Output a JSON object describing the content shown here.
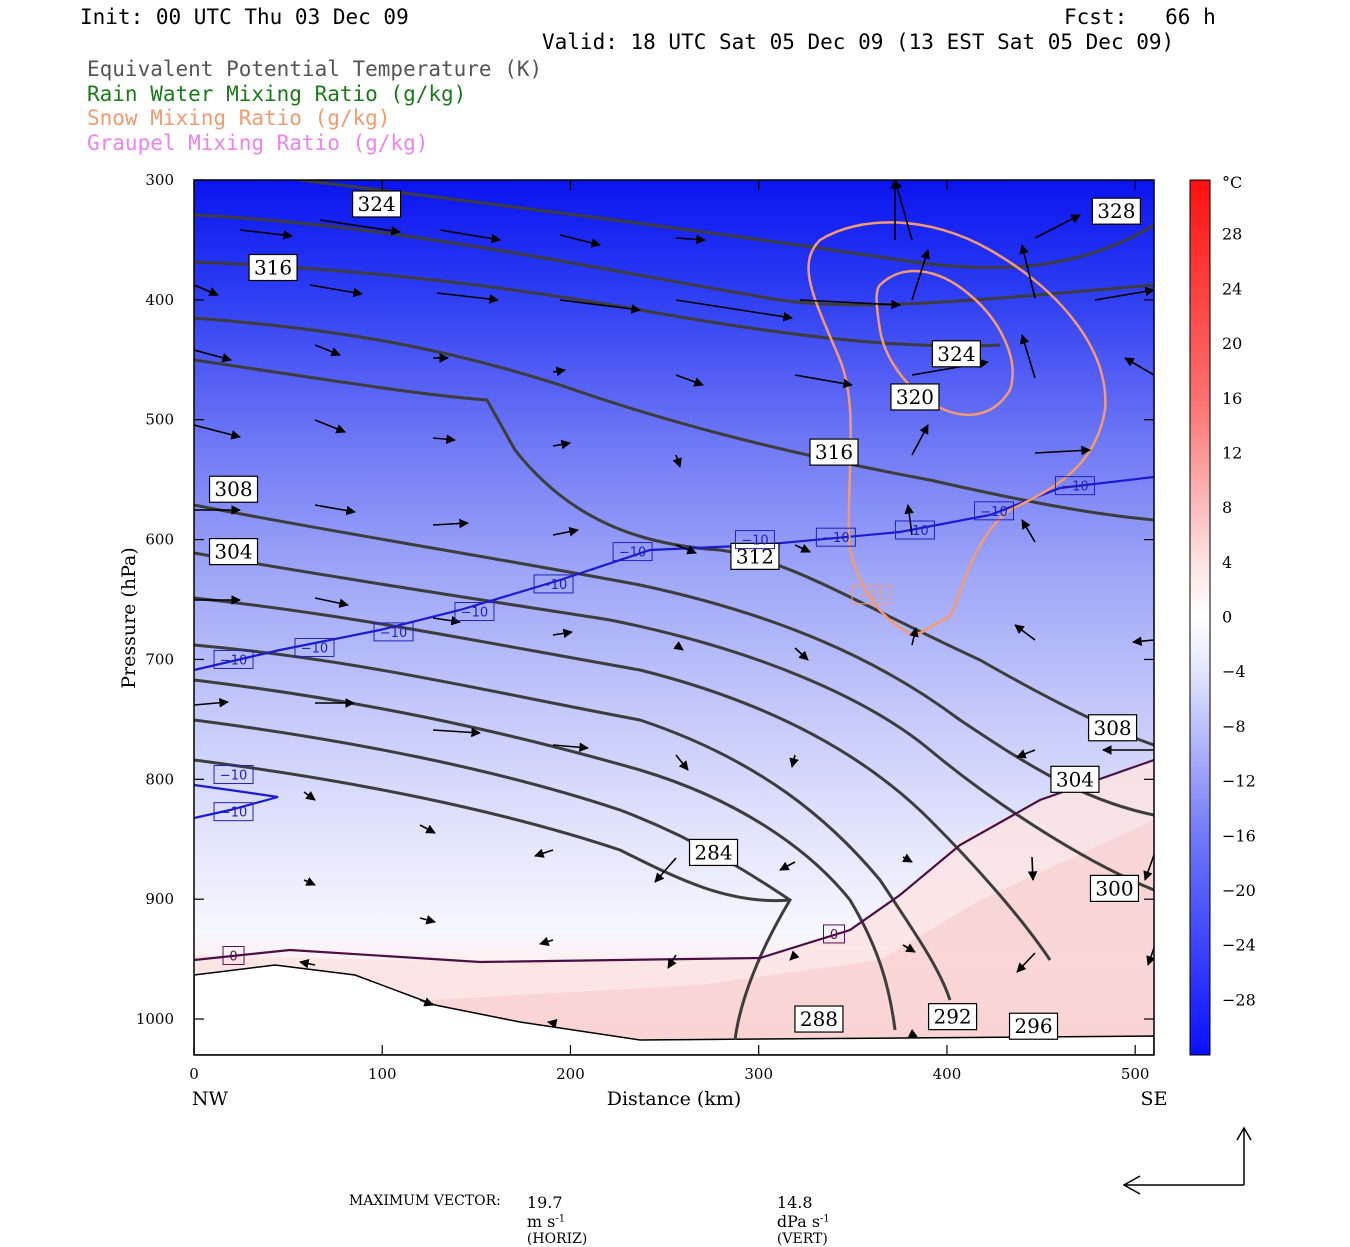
{
  "header": {
    "init": "Init: 00 UTC Thu 03 Dec 09",
    "fcst": "Fcst:   66 h",
    "valid": "Valid: 18 UTC Sat 05 Dec 09 (13 EST Sat 05 Dec 09)",
    "legend": [
      {
        "text": "Equivalent Potential Temperature (K)",
        "color": "#555555"
      },
      {
        "text": "Rain Water Mixing Ratio (g/kg)",
        "color": "#1a7a1a"
      },
      {
        "text": "Snow Mixing Ratio (g/kg)",
        "color": "#f39a70"
      },
      {
        "text": "Graupel Mixing Ratio (g/kg)",
        "color": "#ee82ee"
      }
    ]
  },
  "footer": {
    "label": "MAXIMUM VECTOR:",
    "horiz_value": "19.7",
    "horiz_unit": "m s",
    "horiz_exp": "-1",
    "horiz_tag": "(HORIZ)",
    "vert_value": "14.8",
    "vert_unit": "dPa s",
    "vert_exp": "-1",
    "vert_tag": "(VERT)"
  },
  "chart_data": {
    "type": "contour-cross-section",
    "xlabel": "Distance (km)",
    "ylabel": "Pressure (hPa)",
    "x_end_labels": [
      "NW",
      "SE"
    ],
    "xlim": [
      0,
      510
    ],
    "ylim": [
      1030,
      300
    ],
    "xticks": [
      0,
      100,
      200,
      300,
      400,
      500
    ],
    "yticks": [
      300,
      400,
      500,
      600,
      700,
      800,
      900,
      1000
    ],
    "colorbar": {
      "unit": "°C",
      "ticks": [
        28,
        24,
        20,
        16,
        12,
        8,
        4,
        0,
        -4,
        -8,
        -12,
        -16,
        -20,
        -24,
        -28
      ],
      "range": [
        -32,
        32
      ]
    },
    "theta_e_labels": [
      {
        "text": "324",
        "x": 97,
        "p": 320
      },
      {
        "text": "328",
        "x": 490,
        "p": 326
      },
      {
        "text": "316",
        "x": 42,
        "p": 373
      },
      {
        "text": "324",
        "x": 405,
        "p": 445
      },
      {
        "text": "320",
        "x": 383,
        "p": 481
      },
      {
        "text": "316",
        "x": 340,
        "p": 527
      },
      {
        "text": "308",
        "x": 21,
        "p": 558
      },
      {
        "text": "304",
        "x": 21,
        "p": 610
      },
      {
        "text": "312",
        "x": 298,
        "p": 614
      },
      {
        "text": "308",
        "x": 488,
        "p": 757
      },
      {
        "text": "304",
        "x": 468,
        "p": 800
      },
      {
        "text": "284",
        "x": 276,
        "p": 861
      },
      {
        "text": "300",
        "x": 489,
        "p": 891
      },
      {
        "text": "288",
        "x": 332,
        "p": 1000
      },
      {
        "text": "292",
        "x": 403,
        "p": 998
      },
      {
        "text": "296",
        "x": 446,
        "p": 1006
      }
    ],
    "temp_labels": [
      {
        "text": "−10",
        "x": 21,
        "p": 700,
        "color": "#2222bb"
      },
      {
        "text": "−10",
        "x": 64,
        "p": 690,
        "color": "#2222bb"
      },
      {
        "text": "−10",
        "x": 106,
        "p": 677,
        "color": "#2222bb"
      },
      {
        "text": "−10",
        "x": 149,
        "p": 660,
        "color": "#2222bb"
      },
      {
        "text": "−10",
        "x": 191,
        "p": 637,
        "color": "#2222bb"
      },
      {
        "text": "−10",
        "x": 233,
        "p": 610,
        "color": "#2222bb"
      },
      {
        "text": "−10",
        "x": 298,
        "p": 600,
        "color": "#2222bb"
      },
      {
        "text": "−10",
        "x": 341,
        "p": 598,
        "color": "#2222bb"
      },
      {
        "text": "−10",
        "x": 383,
        "p": 592,
        "color": "#2222bb"
      },
      {
        "text": "−10",
        "x": 425,
        "p": 576,
        "color": "#2222bb"
      },
      {
        "text": "−10",
        "x": 468,
        "p": 555,
        "color": "#2222bb"
      },
      {
        "text": "−10",
        "x": 21,
        "p": 796,
        "color": "#2222bb"
      },
      {
        "text": "−10",
        "x": 21,
        "p": 827,
        "color": "#2222bb"
      },
      {
        "text": "−15",
        "x": 360,
        "p": 646,
        "color": "#f39a70"
      },
      {
        "text": "0",
        "x": 21,
        "p": 947,
        "color": "#5a1050"
      },
      {
        "text": "0",
        "x": 340,
        "p": 929,
        "color": "#5a1050"
      }
    ]
  }
}
